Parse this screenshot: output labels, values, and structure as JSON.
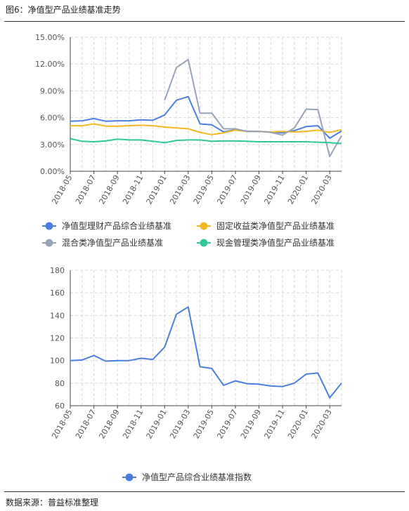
{
  "figure_title": "图6：净值型产品业绩基准走势",
  "source": "数据来源：普益标准整理",
  "chart_data": [
    {
      "type": "line",
      "x": [
        "2018-05",
        "2018-06",
        "2018-07",
        "2018-08",
        "2018-09",
        "2018-10",
        "2018-11",
        "2018-12",
        "2019-01",
        "2019-02",
        "2019-03",
        "2019-04",
        "2019-05",
        "2019-06",
        "2019-07",
        "2019-08",
        "2019-09",
        "2019-10",
        "2019-11",
        "2019-12",
        "2020-01",
        "2020-02",
        "2020-03",
        "2020-04"
      ],
      "x_tick_labels": [
        "2018-05",
        "2018-07",
        "2018-09",
        "2018-11",
        "2019-01",
        "2019-03",
        "2019-05",
        "2019-07",
        "2019-09",
        "2019-11",
        "2020-01",
        "2020-03"
      ],
      "y_tick_labels": [
        "0.00%",
        "3.00%",
        "6.00%",
        "9.00%",
        "12.00%",
        "15.00%"
      ],
      "ylim": [
        0,
        15
      ],
      "grid": true,
      "legend_position": "bottom",
      "series": [
        {
          "name": "净值型理财产品综合业绩基准",
          "color": "#4a7fe0",
          "values": [
            5.6,
            5.65,
            5.9,
            5.6,
            5.65,
            5.65,
            5.75,
            5.7,
            6.3,
            7.95,
            8.35,
            5.3,
            5.2,
            4.4,
            4.65,
            4.5,
            4.45,
            4.4,
            4.3,
            4.55,
            5.0,
            5.1,
            3.7,
            4.5
          ]
        },
        {
          "name": "固定收益类净值型产品业绩基准",
          "color": "#f5b820",
          "values": [
            5.1,
            5.1,
            5.3,
            5.05,
            5.05,
            5.1,
            5.15,
            5.1,
            4.95,
            4.85,
            4.75,
            4.35,
            4.1,
            4.3,
            4.6,
            4.45,
            4.45,
            4.4,
            4.45,
            4.4,
            4.45,
            4.6,
            4.35,
            4.65
          ]
        },
        {
          "name": "混合类净值型产品业绩基准",
          "color": "#97a3b8",
          "values": [
            null,
            null,
            null,
            null,
            null,
            null,
            null,
            null,
            7.95,
            11.6,
            12.5,
            6.5,
            6.5,
            4.75,
            4.75,
            4.45,
            4.45,
            4.35,
            4.05,
            4.85,
            6.95,
            6.9,
            1.65,
            4.0
          ]
        },
        {
          "name": "现金管理类净值型产品业绩基准",
          "color": "#2fc89a",
          "values": [
            3.65,
            3.35,
            3.3,
            3.4,
            3.6,
            3.5,
            3.5,
            3.35,
            3.2,
            3.45,
            3.5,
            3.5,
            3.35,
            3.4,
            3.4,
            3.35,
            3.3,
            3.3,
            3.3,
            3.3,
            3.3,
            3.25,
            3.2,
            3.1
          ]
        }
      ]
    },
    {
      "type": "line",
      "x": [
        "2018-05",
        "2018-06",
        "2018-07",
        "2018-08",
        "2018-09",
        "2018-10",
        "2018-11",
        "2018-12",
        "2019-01",
        "2019-02",
        "2019-03",
        "2019-04",
        "2019-05",
        "2019-06",
        "2019-07",
        "2019-08",
        "2019-09",
        "2019-10",
        "2019-11",
        "2019-12",
        "2020-01",
        "2020-02",
        "2020-03",
        "2020-04"
      ],
      "x_tick_labels": [
        "2018-05",
        "2018-07",
        "2018-09",
        "2018-11",
        "2019-01",
        "2019-03",
        "2019-05",
        "2019-07",
        "2019-09",
        "2019-11",
        "2020-01",
        "2020-03"
      ],
      "y_tick_labels": [
        "60",
        "80",
        "100",
        "120",
        "140",
        "160",
        "180"
      ],
      "ylim": [
        60,
        180
      ],
      "grid": true,
      "legend_position": "bottom",
      "series": [
        {
          "name": "净值型产品综合业绩基准指数",
          "color": "#4a7fe0",
          "values": [
            100,
            100.5,
            104.5,
            99.5,
            100,
            100,
            102,
            101,
            112,
            141,
            147.5,
            94.5,
            93,
            78,
            82,
            79.5,
            79,
            77.5,
            77,
            80,
            88,
            89,
            67,
            80
          ]
        }
      ]
    }
  ]
}
